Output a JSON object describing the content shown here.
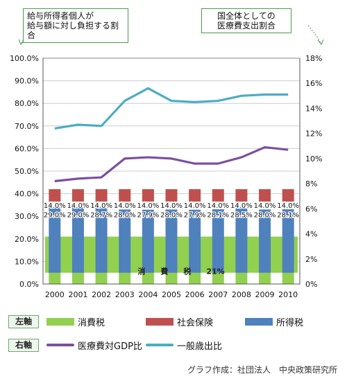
{
  "callouts": {
    "left": "給与所得者個人が\n給与額に対し負担する割合",
    "right": "国全体としての\n医療費支出割合"
  },
  "legend": {
    "left_axis_tag": "左軸",
    "right_axis_tag": "右軸",
    "items": [
      "消費税",
      "社会保険",
      "所得税",
      "医療費対GDP比",
      "一般歳出比"
    ]
  },
  "credit": "グラフ作成：社団法人　中央政策研究所",
  "colors": {
    "consumption_tax": "#92d050",
    "social_insurance": "#c0504d",
    "income_tax": "#4f81bd",
    "medical_gdp": "#7b4fa0",
    "general_expenditure": "#4bacc6",
    "callout_border": "#4a9a4a"
  },
  "chart_data": {
    "type": "bar",
    "categories": [
      "2000",
      "2001",
      "2002",
      "2003",
      "2004",
      "2005",
      "2006",
      "2007",
      "2008",
      "2009",
      "2010"
    ],
    "left_axis": {
      "ylim": [
        0,
        100
      ],
      "ticks": [
        "0.0%",
        "10.0%",
        "20.0%",
        "30.0%",
        "40.0%",
        "50.0%",
        "60.0%",
        "70.0%",
        "80.0%",
        "90.0%",
        "100.0%"
      ]
    },
    "right_axis": {
      "ylim": [
        0,
        18
      ],
      "ticks": [
        "0%",
        "2%",
        "4%",
        "6%",
        "8%",
        "10%",
        "12%",
        "14%",
        "16%",
        "18%"
      ]
    },
    "stacked_series": [
      {
        "name": "消費税",
        "values": [
          5,
          5,
          5,
          5,
          5,
          5,
          5,
          5,
          5,
          5,
          5
        ]
      },
      {
        "name": "所得税",
        "values": [
          29.0,
          29.0,
          28.7,
          28.0,
          27.9,
          28.0,
          27.9,
          28.1,
          28.5,
          28.0,
          28.1
        ]
      },
      {
        "name": "社会保険",
        "values": [
          14.0,
          14.0,
          14.0,
          14.0,
          14.0,
          14.0,
          14.0,
          14.0,
          14.0,
          14.0,
          14.0
        ]
      }
    ],
    "consumption_band": {
      "from": 5,
      "to": 21,
      "label": "消　　費　　税　　21%"
    },
    "income_labels": [
      "29.0%",
      "29.0%",
      "28.7%",
      "28.0%",
      "27.9%",
      "28.0%",
      "27.9%",
      "28.1%",
      "28.5%",
      "28.0%",
      "28.1%"
    ],
    "social_labels": [
      "14.0%",
      "14.0%",
      "14.0%",
      "14.0%",
      "14.0%",
      "14.0%",
      "14.0%",
      "14.0%",
      "14.0%",
      "14.0%",
      "14.0%"
    ],
    "line_series": [
      {
        "name": "医療費対GDP比",
        "axis": "right",
        "values": [
          8.2,
          8.4,
          8.5,
          10.0,
          10.1,
          10.0,
          9.6,
          9.6,
          10.1,
          10.9,
          10.7
        ]
      },
      {
        "name": "一般歳出比",
        "axis": "right",
        "values": [
          12.4,
          12.7,
          12.6,
          14.6,
          15.6,
          14.6,
          14.5,
          14.6,
          15.0,
          15.1,
          15.1
        ]
      }
    ]
  }
}
